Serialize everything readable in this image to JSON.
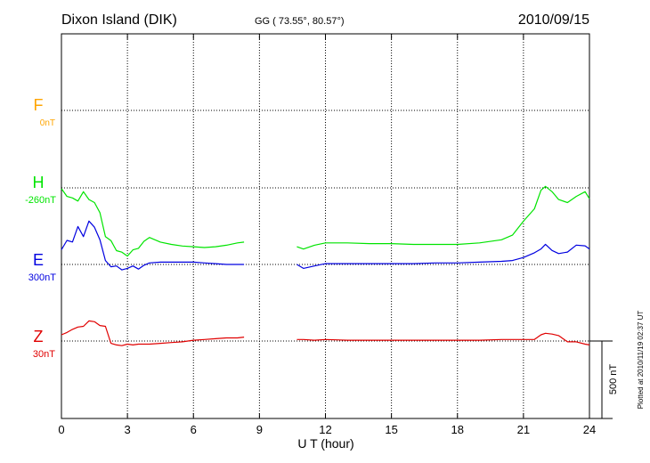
{
  "header": {
    "station": "Dixon Island (DIK)",
    "coords": "GG ( 73.55°,  80.57°)",
    "date": "2010/09/15"
  },
  "footer": {
    "plotted": "Plotted at 2010/11/19 02:37 UT"
  },
  "chart_data": {
    "type": "line",
    "title": "Dixon Island (DIK)",
    "xlabel": "U T (hour)",
    "xlim": [
      0,
      24
    ],
    "xticks": [
      0,
      3,
      6,
      9,
      12,
      15,
      18,
      21,
      24
    ],
    "grid": true,
    "scale_bar": {
      "label": "500 nT",
      "value_nT": 500
    },
    "components": [
      {
        "name": "F",
        "baseline": "0nT",
        "color": "#ffa500",
        "values": []
      },
      {
        "name": "H",
        "baseline": "-260nT",
        "color": "#00e400"
      },
      {
        "name": "E",
        "baseline": "300nT",
        "color": "#0000e0"
      },
      {
        "name": "Z",
        "baseline": "30nT",
        "color": "#e00000"
      }
    ],
    "series": [
      {
        "name": "H",
        "color": "#00e400",
        "x": [
          0,
          0.25,
          0.5,
          0.75,
          1.0,
          1.25,
          1.5,
          1.75,
          2.0,
          2.25,
          2.5,
          2.75,
          3.0,
          3.25,
          3.5,
          3.75,
          4.0,
          4.5,
          5.0,
          5.5,
          6.0,
          6.5,
          7.0,
          7.5,
          8.0,
          8.3,
          null,
          10.7,
          11.0,
          11.5,
          12.0,
          13.0,
          14.0,
          15.0,
          16.0,
          17.0,
          18.0,
          19.0,
          20.0,
          20.5,
          21.0,
          21.5,
          21.8,
          22.0,
          22.3,
          22.6,
          23.0,
          23.4,
          23.8,
          24.0
        ],
        "y": [
          -5,
          -55,
          -65,
          -85,
          -25,
          -75,
          -95,
          -160,
          -315,
          -340,
          -405,
          -415,
          -440,
          -400,
          -390,
          -345,
          -320,
          -350,
          -365,
          -375,
          -380,
          -385,
          -380,
          -370,
          -355,
          -350,
          null,
          -380,
          -395,
          -370,
          -355,
          -355,
          -360,
          -360,
          -365,
          -365,
          -365,
          -355,
          -335,
          -305,
          -215,
          -135,
          -15,
          10,
          -25,
          -75,
          -95,
          -55,
          -25,
          -70
        ]
      },
      {
        "name": "E",
        "color": "#0000e0",
        "x": [
          0,
          0.25,
          0.5,
          0.75,
          1.0,
          1.25,
          1.5,
          1.75,
          2.0,
          2.25,
          2.5,
          2.75,
          3.0,
          3.25,
          3.5,
          3.75,
          4.0,
          4.5,
          5.0,
          5.5,
          6.0,
          6.5,
          7.0,
          7.5,
          8.0,
          8.3,
          null,
          10.7,
          11.0,
          11.5,
          12.0,
          13.0,
          14.0,
          15.0,
          16.0,
          17.0,
          18.0,
          19.0,
          20.0,
          20.5,
          21.0,
          21.5,
          21.8,
          22.0,
          22.3,
          22.6,
          23.0,
          23.4,
          23.8,
          24.0
        ],
        "y": [
          95,
          155,
          145,
          245,
          180,
          280,
          240,
          160,
          25,
          -15,
          -10,
          -35,
          -25,
          -10,
          -30,
          -5,
          10,
          15,
          15,
          15,
          15,
          10,
          5,
          0,
          0,
          0,
          null,
          0,
          -25,
          -10,
          5,
          5,
          5,
          5,
          5,
          10,
          10,
          15,
          20,
          25,
          45,
          75,
          100,
          130,
          90,
          70,
          80,
          125,
          120,
          100
        ]
      },
      {
        "name": "Z",
        "color": "#e00000",
        "x": [
          0,
          0.25,
          0.5,
          0.75,
          1.0,
          1.25,
          1.5,
          1.75,
          2.0,
          2.25,
          2.5,
          2.75,
          3.0,
          3.25,
          3.5,
          3.75,
          4.0,
          4.5,
          5.0,
          5.5,
          6.0,
          6.5,
          7.0,
          7.5,
          8.0,
          8.3,
          null,
          10.7,
          11.0,
          11.5,
          12.0,
          13.0,
          14.0,
          15.0,
          16.0,
          17.0,
          18.0,
          19.0,
          20.0,
          20.5,
          21.0,
          21.5,
          21.8,
          22.0,
          22.3,
          22.6,
          23.0,
          23.4,
          23.8,
          24.0
        ],
        "y": [
          40,
          55,
          75,
          90,
          95,
          130,
          125,
          100,
          95,
          -15,
          -25,
          -30,
          -20,
          -25,
          -20,
          -20,
          -20,
          -15,
          -10,
          -5,
          5,
          10,
          15,
          20,
          20,
          25,
          null,
          10,
          10,
          5,
          10,
          5,
          5,
          5,
          5,
          5,
          5,
          5,
          10,
          10,
          10,
          10,
          40,
          50,
          45,
          35,
          -5,
          -5,
          -20,
          -25
        ]
      }
    ]
  }
}
